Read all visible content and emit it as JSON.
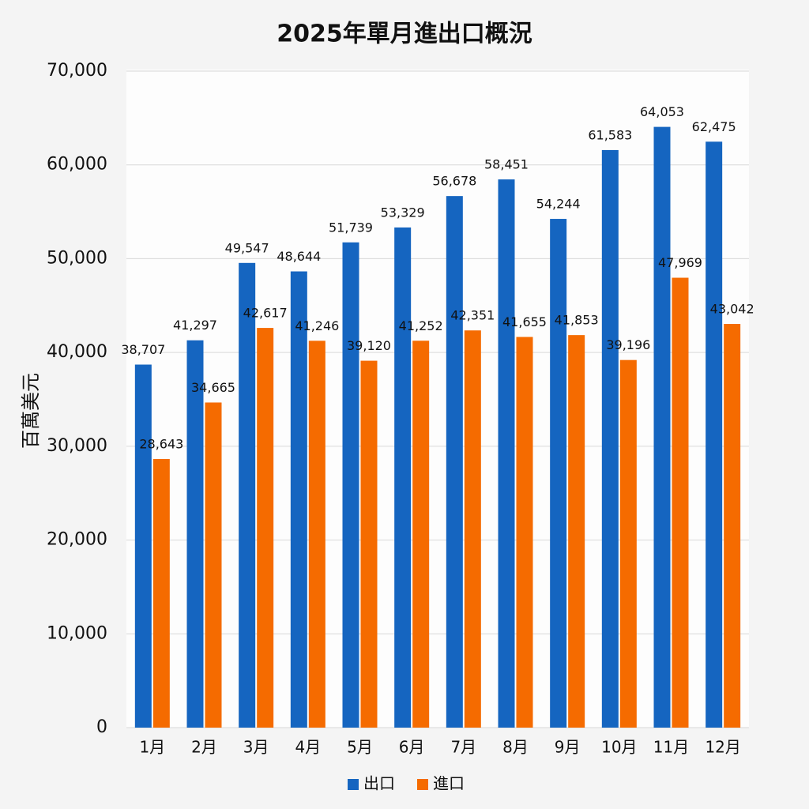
{
  "chart_data": {
    "type": "bar",
    "title": "2025年單月進出口概況",
    "y_label": "百萬美元",
    "categories": [
      "1月",
      "2月",
      "3月",
      "4月",
      "5月",
      "6月",
      "7月",
      "8月",
      "9月",
      "10月",
      "11月",
      "12月"
    ],
    "series": [
      {
        "name": "出口",
        "color": "#1565c0",
        "values": [
          38707,
          41297,
          49547,
          48644,
          51739,
          53329,
          56678,
          58451,
          54244,
          61583,
          64053,
          62475
        ],
        "value_labels": [
          "38,707",
          "41,297",
          "49,547",
          "48,644",
          "51,739",
          "53,329",
          "56,678",
          "58,451",
          "54,244",
          "61,583",
          "64,053",
          "62,475"
        ]
      },
      {
        "name": "進口",
        "color": "#f56b00",
        "values": [
          28643,
          34665,
          42617,
          41246,
          39120,
          41252,
          42351,
          41655,
          41853,
          39196,
          47969,
          43042
        ],
        "value_labels": [
          "28,643",
          "34,665",
          "42,617",
          "41,246",
          "39,120",
          "41,252",
          "42,351",
          "41,655",
          "41,853",
          "39,196",
          "47,969",
          "43,042"
        ]
      }
    ],
    "ylim": [
      0,
      70000
    ],
    "yticks": [
      0,
      {
        "value": 10000,
        "label": "10,000"
      },
      {
        "value": 20000,
        "label": "20,000"
      },
      {
        "value": 30000,
        "label": "30,000"
      },
      {
        "value": 40000,
        "label": "40,000"
      },
      {
        "value": 50000,
        "label": "50,000"
      },
      {
        "value": 60000,
        "label": "60,000"
      },
      {
        "value": 70000,
        "label": "70,000"
      }
    ],
    "grid": true,
    "legend": "bottom"
  }
}
